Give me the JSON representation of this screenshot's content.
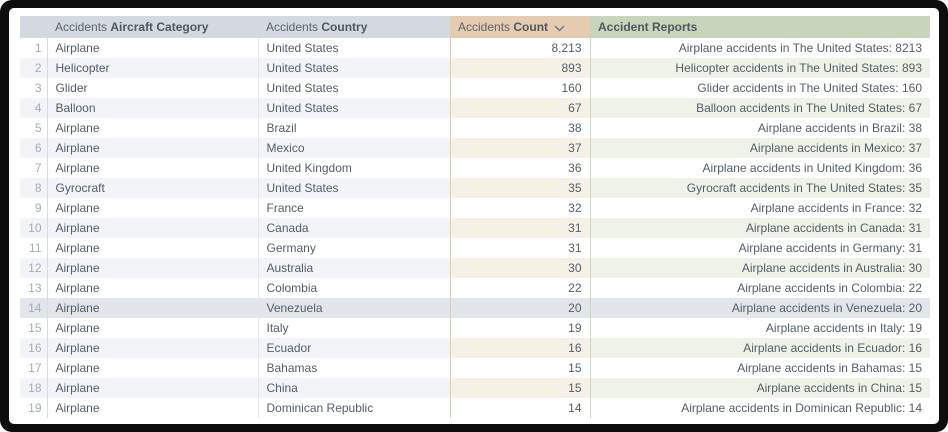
{
  "table": {
    "headers": [
      {
        "id": "index",
        "prefix": "",
        "name": ""
      },
      {
        "id": "aircraft-category",
        "prefix": "Accidents",
        "name": "Aircraft Category"
      },
      {
        "id": "country",
        "prefix": "Accidents",
        "name": "Country"
      },
      {
        "id": "count",
        "prefix": "Accidents",
        "name": "Count",
        "sort": "desc"
      },
      {
        "id": "reports",
        "prefix": "",
        "name": "Accident Reports"
      }
    ],
    "highlighted_row": 14,
    "rows": [
      {
        "index": 1,
        "category": "Airplane",
        "country": "United States",
        "count": "8,213",
        "report": "Airplane accidents in The United States: 8213"
      },
      {
        "index": 2,
        "category": "Helicopter",
        "country": "United States",
        "count": "893",
        "report": "Helicopter accidents in The United States: 893"
      },
      {
        "index": 3,
        "category": "Glider",
        "country": "United States",
        "count": "160",
        "report": "Glider accidents in The United States: 160"
      },
      {
        "index": 4,
        "category": "Balloon",
        "country": "United States",
        "count": "67",
        "report": "Balloon accidents in The United States: 67"
      },
      {
        "index": 5,
        "category": "Airplane",
        "country": "Brazil",
        "count": "38",
        "report": "Airplane accidents in Brazil: 38"
      },
      {
        "index": 6,
        "category": "Airplane",
        "country": "Mexico",
        "count": "37",
        "report": "Airplane accidents in Mexico: 37"
      },
      {
        "index": 7,
        "category": "Airplane",
        "country": "United Kingdom",
        "count": "36",
        "report": "Airplane accidents in United Kingdom: 36"
      },
      {
        "index": 8,
        "category": "Gyrocraft",
        "country": "United States",
        "count": "35",
        "report": "Gyrocraft accidents in The United States: 35"
      },
      {
        "index": 9,
        "category": "Airplane",
        "country": "France",
        "count": "32",
        "report": "Airplane accidents in France: 32"
      },
      {
        "index": 10,
        "category": "Airplane",
        "country": "Canada",
        "count": "31",
        "report": "Airplane accidents in Canada: 31"
      },
      {
        "index": 11,
        "category": "Airplane",
        "country": "Germany",
        "count": "31",
        "report": "Airplane accidents in Germany: 31"
      },
      {
        "index": 12,
        "category": "Airplane",
        "country": "Australia",
        "count": "30",
        "report": "Airplane accidents in Australia: 30"
      },
      {
        "index": 13,
        "category": "Airplane",
        "country": "Colombia",
        "count": "22",
        "report": "Airplane accidents in Colombia: 22"
      },
      {
        "index": 14,
        "category": "Airplane",
        "country": "Venezuela",
        "count": "20",
        "report": "Airplane accidents in Venezuela: 20"
      },
      {
        "index": 15,
        "category": "Airplane",
        "country": "Italy",
        "count": "19",
        "report": "Airplane accidents in Italy: 19"
      },
      {
        "index": 16,
        "category": "Airplane",
        "country": "Ecuador",
        "count": "16",
        "report": "Airplane accidents in Ecuador: 16"
      },
      {
        "index": 17,
        "category": "Airplane",
        "country": "Bahamas",
        "count": "15",
        "report": "Airplane accidents in Bahamas: 15"
      },
      {
        "index": 18,
        "category": "Airplane",
        "country": "China",
        "count": "15",
        "report": "Airplane accidents in China: 15"
      },
      {
        "index": 19,
        "category": "Airplane",
        "country": "Dominican Republic",
        "count": "14",
        "report": "Airplane accidents in Dominican Republic: 14"
      }
    ]
  },
  "colors": {
    "header_default_bg": "#d4d9e0",
    "header_count_bg": "#e5ccb1",
    "header_reports_bg": "#c9d5ba",
    "row_even_bg": "#f2f4f7",
    "row_even_count_bg": "#f6f1e7",
    "row_even_reports_bg": "#eef2e8",
    "row_highlight_bg": "#e2e5e9",
    "frame_bg": "#0d0d0d",
    "text": "#545e68",
    "row_index_text": "#a3adb8"
  }
}
